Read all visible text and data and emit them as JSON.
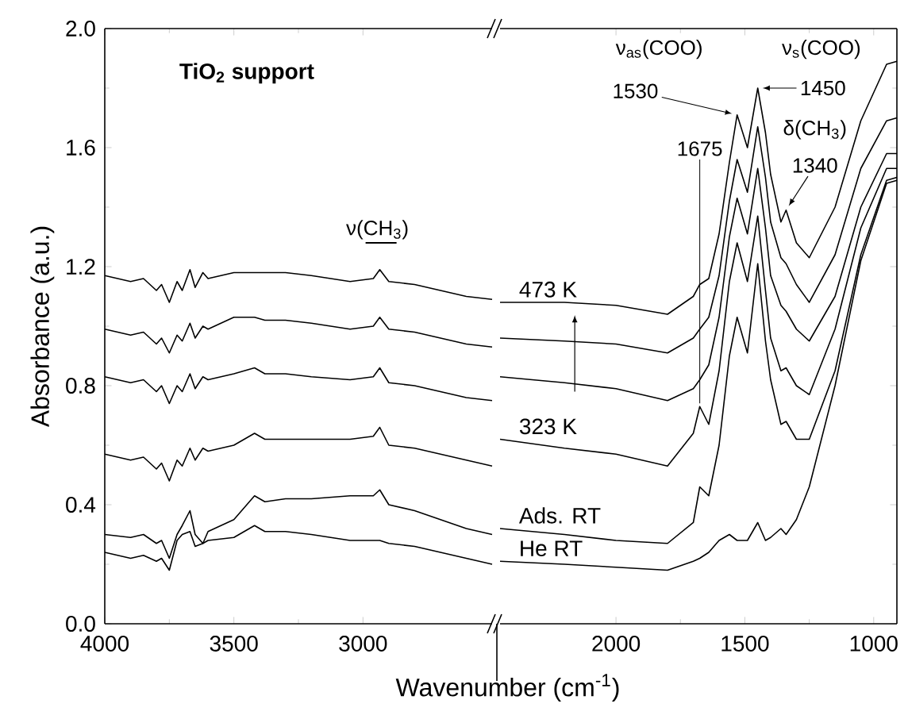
{
  "chart_data": [
    {
      "type": "line",
      "ylabel": "Absorbance (a.u.)",
      "xlim": [
        4000,
        2500
      ],
      "xticks": [
        4000,
        3500,
        3000
      ],
      "ylim": [
        0,
        2
      ],
      "yticks": [
        {
          "value": 0,
          "label": "0.0"
        },
        0.4,
        0.8,
        1.2,
        1.6,
        {
          "value": 2,
          "label": "2.0"
        }
      ],
      "annotations": [
        "TiO$_{2}$ support",
        {
          "text": "ν(CH$_{3}$)",
          "x": 2935,
          "y": 1.19
        }
      ],
      "x": [
        4000,
        3900,
        3850,
        3800,
        3780,
        3750,
        3720,
        3700,
        3670,
        3650,
        3620,
        3600,
        3500,
        3420,
        3380,
        3300,
        3200,
        3050,
        2960,
        2935,
        2900,
        2800,
        2700,
        2600,
        2500
      ],
      "series": [
        {
          "color": "#000000",
          "values": [
            1.17,
            1.15,
            1.16,
            1.12,
            1.14,
            1.08,
            1.15,
            1.12,
            1.19,
            1.13,
            1.18,
            1.16,
            1.18,
            1.18,
            1.18,
            1.18,
            1.17,
            1.15,
            1.16,
            1.19,
            1.15,
            1.14,
            1.12,
            1.1,
            1.09
          ]
        },
        {
          "color": "#000000",
          "values": [
            0.99,
            0.97,
            0.98,
            0.94,
            0.96,
            0.91,
            0.97,
            0.95,
            1.01,
            0.96,
            1.0,
            0.99,
            1.03,
            1.03,
            1.02,
            1.02,
            1.01,
            0.99,
            1.0,
            1.03,
            0.99,
            0.98,
            0.96,
            0.94,
            0.93
          ]
        },
        {
          "color": "#000000",
          "values": [
            0.83,
            0.81,
            0.82,
            0.78,
            0.8,
            0.74,
            0.8,
            0.78,
            0.84,
            0.79,
            0.83,
            0.82,
            0.84,
            0.86,
            0.84,
            0.84,
            0.83,
            0.82,
            0.83,
            0.86,
            0.81,
            0.8,
            0.78,
            0.76,
            0.75
          ]
        },
        {
          "color": "#000000",
          "values": [
            0.57,
            0.55,
            0.56,
            0.52,
            0.54,
            0.48,
            0.55,
            0.53,
            0.59,
            0.55,
            0.59,
            0.58,
            0.6,
            0.64,
            0.62,
            0.62,
            0.62,
            0.62,
            0.63,
            0.66,
            0.6,
            0.59,
            0.57,
            0.55,
            0.53
          ]
        },
        {
          "color": "#000000",
          "values": [
            0.3,
            0.29,
            0.3,
            0.27,
            0.28,
            0.22,
            0.3,
            0.33,
            0.38,
            0.3,
            0.27,
            0.31,
            0.35,
            0.43,
            0.41,
            0.42,
            0.42,
            0.43,
            0.43,
            0.45,
            0.4,
            0.38,
            0.35,
            0.32,
            0.3
          ]
        },
        {
          "color": "#000000",
          "values": [
            0.24,
            0.22,
            0.23,
            0.21,
            0.22,
            0.18,
            0.28,
            0.3,
            0.31,
            0.26,
            0.27,
            0.28,
            0.29,
            0.33,
            0.31,
            0.31,
            0.3,
            0.28,
            0.28,
            0.28,
            0.27,
            0.26,
            0.24,
            0.22,
            0.2
          ]
        }
      ]
    },
    {
      "type": "line",
      "xlabel": "Wavenumber (cm$^{-1}$)",
      "xlim": [
        2450,
        910
      ],
      "xticks": [
        2000,
        1500,
        1000
      ],
      "ylim": [
        0,
        2
      ],
      "yticks": [
        0,
        0.4,
        0.8,
        1.2,
        1.6,
        2
      ],
      "tick_labels": "x",
      "annotations": [
        "ν$_{as}$(COO)",
        {
          "text": "1530",
          "x": 1530,
          "y": 1.71
        },
        "ν$_{s}$(COO)",
        {
          "text": "1450",
          "x": 1450,
          "y": 1.8
        },
        "δ(CH$_{3}$)",
        {
          "text": "1340",
          "x": 1340,
          "y": 1.39
        },
        {
          "text": "1675",
          "x": 1675,
          "y": 0.73
        }
      ],
      "x": [
        2450,
        2200,
        2000,
        1800,
        1700,
        1675,
        1640,
        1600,
        1560,
        1530,
        1490,
        1450,
        1420,
        1400,
        1360,
        1340,
        1300,
        1250,
        1150,
        1050,
        950,
        910
      ],
      "series": [
        {
          "name": "473 K",
          "color": "#000000",
          "values": [
            1.08,
            1.08,
            1.07,
            1.04,
            1.1,
            1.14,
            1.16,
            1.31,
            1.55,
            1.71,
            1.6,
            1.8,
            1.65,
            1.51,
            1.35,
            1.39,
            1.28,
            1.23,
            1.4,
            1.69,
            1.88,
            1.89
          ]
        },
        {
          "color": "#000000",
          "values": [
            0.96,
            0.95,
            0.94,
            0.91,
            0.96,
            0.99,
            1.03,
            1.17,
            1.42,
            1.56,
            1.45,
            1.67,
            1.5,
            1.35,
            1.23,
            1.21,
            1.14,
            1.08,
            1.24,
            1.53,
            1.69,
            1.7
          ]
        },
        {
          "color": "#000000",
          "values": [
            0.83,
            0.81,
            0.79,
            0.75,
            0.79,
            0.82,
            0.87,
            1.03,
            1.3,
            1.43,
            1.31,
            1.53,
            1.33,
            1.17,
            1.07,
            1.05,
            0.99,
            0.95,
            1.1,
            1.4,
            1.58,
            1.58
          ]
        },
        {
          "name": "323 K",
          "color": "#000000",
          "values": [
            0.62,
            0.59,
            0.57,
            0.53,
            0.64,
            0.73,
            0.67,
            0.85,
            1.15,
            1.28,
            1.15,
            1.37,
            1.12,
            0.96,
            0.85,
            0.86,
            0.8,
            0.77,
            0.99,
            1.33,
            1.53,
            1.53
          ]
        },
        {
          "name": "Ads. RT",
          "color": "#000000",
          "values": [
            0.32,
            0.3,
            0.28,
            0.27,
            0.34,
            0.46,
            0.43,
            0.6,
            0.9,
            1.03,
            0.91,
            1.21,
            0.95,
            0.82,
            0.67,
            0.68,
            0.62,
            0.62,
            0.85,
            1.24,
            1.49,
            1.5
          ]
        },
        {
          "name": "He RT",
          "color": "#000000",
          "values": [
            0.21,
            0.2,
            0.19,
            0.18,
            0.21,
            0.22,
            0.24,
            0.28,
            0.3,
            0.28,
            0.28,
            0.34,
            0.28,
            0.29,
            0.32,
            0.3,
            0.35,
            0.46,
            0.8,
            1.22,
            1.48,
            1.49
          ]
        }
      ]
    }
  ]
}
